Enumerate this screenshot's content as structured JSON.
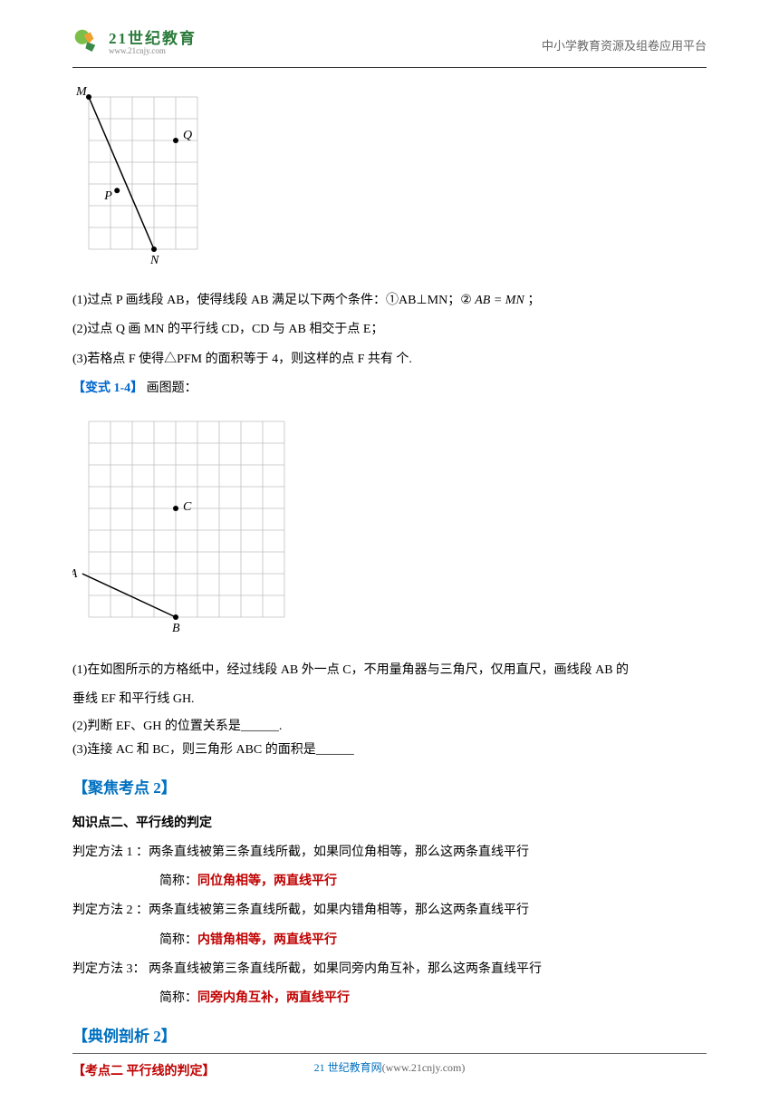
{
  "header": {
    "logo_cn": "21世纪教育",
    "logo_url": "www.21cnjy.com",
    "right_text": "中小学教育资源及组卷应用平台"
  },
  "figure1": {
    "grid_cols": 5,
    "grid_rows": 7,
    "cell": 24,
    "grid_color": "#bfbfbf",
    "background": "#ffffff",
    "label_font": 14,
    "points": {
      "M": {
        "col": 0,
        "row": 0,
        "label_dx": -14,
        "label_dy": -2
      },
      "N": {
        "col": 3,
        "row": 7,
        "label_dx": -4,
        "label_dy": 16
      },
      "P": {
        "col": 1.3,
        "row": 4.3,
        "label_dx": -14,
        "label_dy": 10
      },
      "Q": {
        "col": 4,
        "row": 2,
        "label_dx": 8,
        "label_dy": -2
      }
    },
    "line": [
      "M",
      "N"
    ]
  },
  "q1": {
    "line1_a": "(1)过点 P 画线段 AB，使得线段 AB 满足以下两个条件：①AB⊥MN；②",
    "line1_b": "AB = MN",
    "line1_c": "；",
    "line2": "(2)过点 Q 画 MN 的平行线 CD，CD 与 AB 相交于点 E；",
    "line3": "(3)若格点 F 使得△PFM 的面积等于 4，则这样的点 F 共有  个."
  },
  "variant": {
    "label": "【变式 1-4】",
    "text": "画图题："
  },
  "figure2": {
    "grid_cols": 9,
    "grid_rows": 9,
    "cell": 24,
    "grid_color": "#bfbfbf",
    "background": "#ffffff",
    "label_font": 14,
    "points": {
      "A": {
        "col": -0.3,
        "row": 7,
        "label_dx": -14,
        "label_dy": 4,
        "draw_dot": false
      },
      "B": {
        "col": 4,
        "row": 9,
        "label_dx": -4,
        "label_dy": 16
      },
      "C": {
        "col": 4,
        "row": 4,
        "label_dx": 8,
        "label_dy": 2
      }
    },
    "line": [
      "A",
      "B"
    ]
  },
  "q2": {
    "line1": "(1)在如图所示的方格纸中，经过线段 AB 外一点 C，不用量角器与三角尺，仅用直尺，画线段 AB 的",
    "line1b": "垂线 EF 和平行线 GH.",
    "line2_a": "(2)判断 EF、GH 的位置关系是",
    "line2_b": "______",
    "line2_c": ".",
    "line3_a": "(3)连接 AC 和 BC，则三角形 ABC 的面积是",
    "line3_b": "______"
  },
  "focus": {
    "label": "【聚焦考点 2】"
  },
  "knowledge": {
    "title": "知识点二、平行线的判定",
    "m1": "判定方法  1 ：两条直线被第三条直线所截，如果同位角相等，那么这两条直线平行",
    "m1s_a": "简称：",
    "m1s_b": "同位角相等，两直线平行",
    "m2": "判定方法  2 ：两条直线被第三条直线所截，如果内错角相等，那么这两条直线平行",
    "m2s_a": "简称：",
    "m2s_b": "内错角相等，两直线平行",
    "m3": "判定方法  3：  两条直线被第三条直线所截，如果同旁内角互补，那么这两条直线平行",
    "m3s_a": "简称：",
    "m3s_b": "同旁内角互补，两直线平行"
  },
  "dianxing": {
    "label": "【典例剖析 2】"
  },
  "exam": {
    "label": "【考点二  平行线的判定】"
  },
  "footer": {
    "site": "21 世纪教育网",
    "url": "(www.21cnjy.com)"
  },
  "colors": {
    "blue": "#0070c0",
    "red": "#c00000",
    "green": "#2a7a3a",
    "gray": "#666666"
  }
}
